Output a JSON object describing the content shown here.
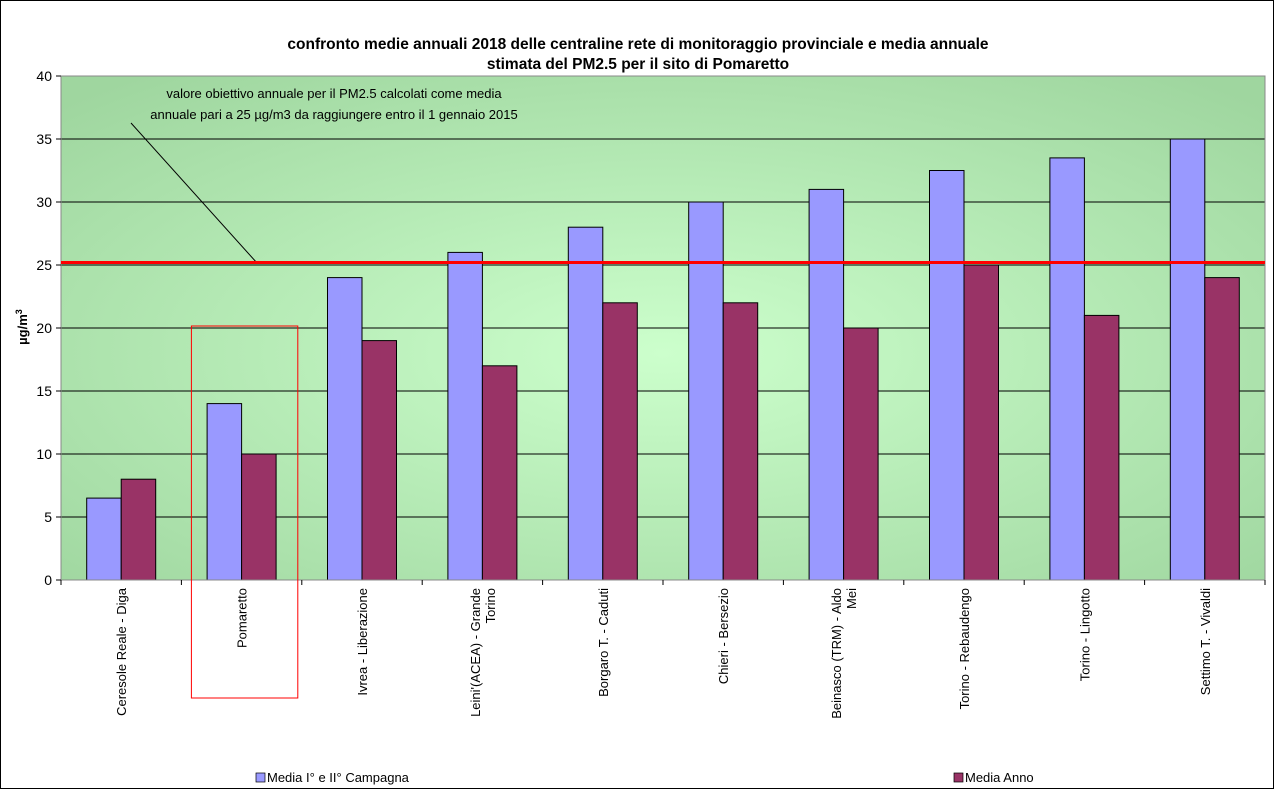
{
  "chart_data": {
    "type": "bar",
    "title_lines": [
      "confronto medie annuali 2018 delle centraline rete di monitoraggio provinciale e media annuale",
      "stimata  del PM2.5 per il sito di Pomaretto"
    ],
    "ylabel": {
      "main": "µg/m",
      "sup": "3"
    },
    "ylim": [
      0,
      40
    ],
    "yticks": [
      0,
      5,
      10,
      15,
      20,
      25,
      30,
      35,
      40
    ],
    "categories": [
      [
        "Ceresole Reale - Diga"
      ],
      [
        "Pomaretto"
      ],
      [
        "Ivrea - Liberazione"
      ],
      [
        "Leini'(ACEA) - Grande",
        "Torino"
      ],
      [
        "Borgaro T. - Caduti"
      ],
      [
        "Chieri - Bersezio"
      ],
      [
        "Beinasco (TRM) - Aldo",
        "Mei"
      ],
      [
        "Torino - Rebaudengo"
      ],
      [
        "Torino - Lingotto"
      ],
      [
        "Settimo T. - Vivaldi"
      ]
    ],
    "series": [
      {
        "name": "Media I° e II° Campagna",
        "color": "#9999ff",
        "values": [
          6.5,
          14,
          24,
          26,
          28,
          30,
          31,
          32.5,
          33.5,
          35
        ]
      },
      {
        "name": "Media Anno",
        "color": "#993366",
        "values": [
          8,
          10,
          19,
          17,
          22,
          22,
          20,
          25,
          21,
          24
        ]
      }
    ],
    "reference_line": {
      "value": 25.2,
      "color": "#ff0000"
    },
    "annotation": {
      "lines": [
        "valore obiettivo annuale per il PM2.5  calcolati come media",
        "annuale pari a 25 µg/m3 da raggiungere entro il 1 gennaio 2015"
      ]
    },
    "highlight_category": "Pomaretto",
    "highlight_color": "#ff0000",
    "plot_background": "#c8f5c8",
    "grid": true,
    "legend_position": "bottom"
  }
}
